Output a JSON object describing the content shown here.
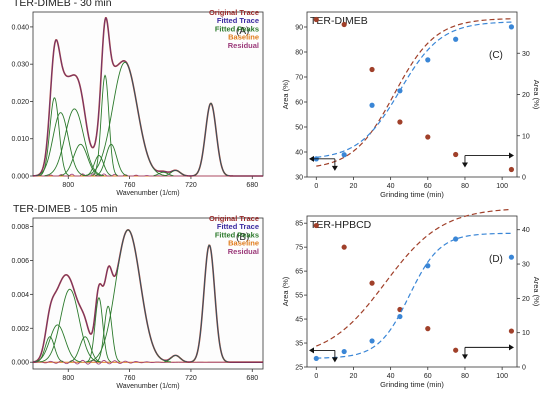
{
  "colors": {
    "original": "#9b2a2a",
    "fitted": "#3b2aa0",
    "peaks": "#2c7a2c",
    "baseline": "#e07b1a",
    "residual": "#9b3a7a",
    "area_left": "#a0402a",
    "area_right": "#3a86d6",
    "panel_bg": "#fdfdfd"
  },
  "chart_data": [
    {
      "id": "A",
      "type": "line",
      "title": "TER-DIMEB - 30 min",
      "panel_label": "(A)",
      "xlabel": "Wavenumber (1/cm)",
      "ylabel": "",
      "xlim": [
        823,
        673
      ],
      "ylim": [
        0,
        0.044
      ],
      "x_ticks": [
        800,
        760,
        720,
        680
      ],
      "y_ticks": [
        0.0,
        0.01,
        0.02,
        0.03,
        0.04
      ],
      "y_tick_labels": [
        "0.000",
        "0.010",
        "0.020",
        "0.030",
        "0.040"
      ],
      "legend": [
        "Original Trace",
        "Fitted Trace",
        "Fitted Peaks",
        "Baseline",
        "Residual"
      ],
      "peaks": [
        {
          "center": 809,
          "height": 0.021,
          "width": 3.0
        },
        {
          "center": 805,
          "height": 0.017,
          "width": 5.0
        },
        {
          "center": 796,
          "height": 0.018,
          "width": 6.0
        },
        {
          "center": 792,
          "height": 0.0085,
          "width": 4.5
        },
        {
          "center": 780,
          "height": 0.0055,
          "width": 3.0
        },
        {
          "center": 776,
          "height": 0.027,
          "width": 2.5
        },
        {
          "center": 772,
          "height": 0.0085,
          "width": 3.5
        },
        {
          "center": 763,
          "height": 0.0305,
          "width": 8.0
        },
        {
          "center": 738,
          "height": 0.001,
          "width": 3.0
        },
        {
          "center": 730,
          "height": 0.0015,
          "width": 3.0
        },
        {
          "center": 707,
          "height": 0.0195,
          "width": 3.5
        }
      ]
    },
    {
      "id": "B",
      "type": "line",
      "title": "TER-DIMEB - 105 min",
      "panel_label": "(B)",
      "xlabel": "Wavenumber (1/cm)",
      "ylabel": "",
      "xlim": [
        823,
        673
      ],
      "ylim": [
        -0.0004,
        0.0085
      ],
      "x_ticks": [
        800,
        760,
        720,
        680
      ],
      "y_ticks": [
        0.0,
        0.002,
        0.004,
        0.006,
        0.008
      ],
      "y_tick_labels": [
        "0.000",
        "0.002",
        "0.004",
        "0.006",
        "0.008"
      ],
      "legend": [
        "Original Trace",
        "Fitted Trace",
        "Fitted Peaks",
        "Baseline",
        "Residual"
      ],
      "peaks": [
        {
          "center": 812,
          "height": 0.0015,
          "width": 3.0
        },
        {
          "center": 807,
          "height": 0.0022,
          "width": 5.0
        },
        {
          "center": 799,
          "height": 0.0043,
          "width": 6.0
        },
        {
          "center": 789,
          "height": 0.0015,
          "width": 3.5
        },
        {
          "center": 780,
          "height": 0.0038,
          "width": 2.5
        },
        {
          "center": 774,
          "height": 0.0033,
          "width": 2.5
        },
        {
          "center": 761,
          "height": 0.0078,
          "width": 8.0
        },
        {
          "center": 730,
          "height": 0.0004,
          "width": 3.0
        },
        {
          "center": 708,
          "height": 0.0069,
          "width": 3.5
        }
      ]
    },
    {
      "id": "C",
      "type": "scatter",
      "title": "TER-DIMEB",
      "panel_label": "(C)",
      "xlabel": "Grinding time (min)",
      "ylabel": "Area (%)",
      "y2label": "Area (%)",
      "xlim": [
        -5,
        108
      ],
      "ylim": [
        30,
        96
      ],
      "y2lim": [
        0,
        40
      ],
      "x_ticks": [
        0,
        20,
        40,
        60,
        80,
        100
      ],
      "y_ticks": [
        30,
        40,
        50,
        60,
        70,
        80,
        90
      ],
      "y2_ticks": [
        0,
        10,
        20,
        30
      ],
      "series": [
        {
          "axis": "left",
          "x": [
            0,
            15,
            30,
            45,
            60,
            75,
            105
          ],
          "values": [
            93,
            91,
            73,
            52,
            46,
            39,
            33
          ],
          "fit": {
            "y0": 33,
            "amp": 60.5,
            "mid": 42,
            "k": 0.09
          }
        },
        {
          "axis": "right",
          "x": [
            0,
            15,
            30,
            45,
            60,
            75,
            105
          ],
          "values": [
            4.4,
            5.4,
            17.4,
            20.9,
            28.4,
            33.4,
            36.4
          ],
          "fit": {
            "y0": 4.2,
            "amp": 33.5,
            "mid": 45,
            "k": 0.09
          }
        }
      ]
    },
    {
      "id": "D",
      "type": "scatter",
      "title": "TER-HPBCD",
      "panel_label": "(D)",
      "xlabel": "Grinding time (min)",
      "ylabel": "Area (%)",
      "y2label": "Area (%)",
      "xlim": [
        -5,
        108
      ],
      "ylim": [
        25,
        88
      ],
      "y2lim": [
        0,
        44
      ],
      "x_ticks": [
        0,
        20,
        40,
        60,
        80,
        100
      ],
      "y_ticks": [
        25,
        35,
        45,
        55,
        65,
        75,
        85
      ],
      "y2_ticks": [
        0,
        10,
        20,
        30,
        40
      ],
      "series": [
        {
          "axis": "left",
          "x": [
            0,
            15,
            30,
            45,
            60,
            75,
            105
          ],
          "values": [
            84,
            75,
            60,
            49,
            41,
            32,
            40
          ],
          "fit": {
            "y0": 28.5,
            "amp": 63,
            "mid": 37,
            "k": 0.065
          }
        },
        {
          "axis": "right",
          "x": [
            0,
            15,
            30,
            45,
            60,
            75,
            105
          ],
          "values": [
            2.5,
            4.5,
            7.6,
            14.7,
            29.5,
            37.3,
            32.0
          ],
          "fit": {
            "y0": 2.5,
            "amp": 36.5,
            "mid": 50,
            "k": 0.12
          }
        }
      ]
    }
  ]
}
